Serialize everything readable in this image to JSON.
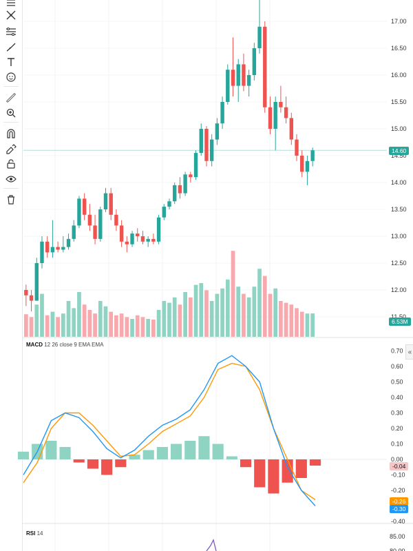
{
  "toolbar": {
    "tools": [
      "crosshair-lines-icon",
      "trend-line-icon",
      "fib-icon",
      "brush-icon",
      "text-icon",
      "emoji-icon",
      "ruler-icon",
      "zoom-in-icon",
      "magnet-icon",
      "lock-draw-icon",
      "lock-icon",
      "eye-icon",
      "trash-icon"
    ]
  },
  "price_axis": {
    "ticks": [
      "17.00",
      "16.50",
      "16.00",
      "15.50",
      "15.00",
      "14.50",
      "14.00",
      "13.50",
      "13.00",
      "12.50",
      "12.00",
      "11.50"
    ],
    "last_price": "14.60",
    "last_volume": "6.53M"
  },
  "macd": {
    "title": "MACD",
    "params": "12 26 close 9 EMA EMA",
    "ticks": [
      "0.70",
      "0.60",
      "0.50",
      "0.40",
      "0.30",
      "0.20",
      "0.10",
      "0.00",
      "-0.10",
      "-0.20",
      "-0.30",
      "-0.40"
    ],
    "histogram_value": "-0.04",
    "signal_value": "-0.26",
    "macd_value": "-0.30"
  },
  "rsi": {
    "title": "RSI",
    "params": "14",
    "ticks": [
      "85.00",
      "80.00"
    ]
  },
  "colors": {
    "up": "#26a69a",
    "down": "#ef5350",
    "up_vol": "#8fd3c3",
    "down_vol": "#f7a9ad",
    "macd_line": "#2196f3",
    "signal_line": "#ff9800",
    "rsi_line": "#7e57c2"
  },
  "chart_data": {
    "type": "candlestick",
    "ohlc": [
      [
        12.0,
        12.1,
        11.7,
        11.9
      ],
      [
        11.9,
        12.0,
        11.6,
        11.8
      ],
      [
        11.8,
        12.6,
        11.8,
        12.5
      ],
      [
        12.5,
        13.0,
        12.4,
        12.9
      ],
      [
        12.9,
        13.0,
        12.6,
        12.7
      ],
      [
        12.7,
        13.3,
        12.6,
        12.8
      ],
      [
        12.8,
        12.9,
        12.7,
        12.75
      ],
      [
        12.75,
        13.0,
        12.7,
        12.8
      ],
      [
        12.8,
        13.05,
        12.75,
        12.95
      ],
      [
        12.95,
        13.3,
        12.9,
        13.2
      ],
      [
        13.2,
        13.75,
        13.15,
        13.7
      ],
      [
        13.7,
        13.8,
        13.3,
        13.4
      ],
      [
        13.4,
        13.6,
        13.1,
        13.2
      ],
      [
        13.2,
        13.4,
        12.85,
        12.95
      ],
      [
        12.95,
        13.55,
        12.9,
        13.5
      ],
      [
        13.5,
        13.9,
        13.45,
        13.8
      ],
      [
        13.8,
        13.9,
        13.3,
        13.4
      ],
      [
        13.4,
        13.5,
        13.1,
        13.2
      ],
      [
        13.2,
        13.3,
        12.8,
        12.9
      ],
      [
        12.9,
        13.0,
        12.7,
        12.85
      ],
      [
        12.85,
        13.1,
        12.8,
        13.05
      ],
      [
        13.05,
        13.15,
        12.9,
        13.0
      ],
      [
        13.0,
        13.1,
        12.85,
        12.9
      ],
      [
        12.9,
        13.0,
        12.8,
        12.95
      ],
      [
        12.95,
        13.05,
        12.85,
        12.9
      ],
      [
        12.9,
        13.4,
        12.85,
        13.35
      ],
      [
        13.35,
        13.6,
        13.3,
        13.55
      ],
      [
        13.55,
        13.7,
        13.5,
        13.65
      ],
      [
        13.65,
        14.0,
        13.6,
        13.95
      ],
      [
        13.95,
        14.1,
        13.7,
        13.8
      ],
      [
        13.8,
        14.2,
        13.75,
        14.15
      ],
      [
        14.15,
        14.2,
        14.0,
        14.1
      ],
      [
        14.1,
        14.6,
        14.05,
        14.55
      ],
      [
        14.55,
        15.1,
        14.5,
        15.0
      ],
      [
        15.0,
        15.05,
        14.3,
        14.4
      ],
      [
        14.4,
        14.9,
        14.3,
        14.8
      ],
      [
        14.8,
        15.2,
        14.7,
        15.1
      ],
      [
        15.1,
        15.6,
        15.0,
        15.5
      ],
      [
        15.5,
        16.2,
        15.45,
        16.1
      ],
      [
        16.1,
        16.7,
        15.6,
        15.8
      ],
      [
        15.8,
        16.3,
        15.5,
        16.2
      ],
      [
        16.2,
        16.4,
        15.7,
        15.8
      ],
      [
        15.8,
        16.1,
        15.6,
        16.0
      ],
      [
        16.0,
        16.6,
        15.9,
        16.5
      ],
      [
        16.5,
        17.4,
        16.4,
        16.9
      ],
      [
        16.9,
        17.0,
        15.3,
        15.4
      ],
      [
        15.4,
        15.6,
        14.9,
        15.0
      ],
      [
        15.0,
        15.6,
        14.6,
        15.5
      ],
      [
        15.5,
        15.8,
        15.3,
        15.4
      ],
      [
        15.4,
        15.6,
        15.1,
        15.2
      ],
      [
        15.2,
        15.3,
        14.7,
        14.8
      ],
      [
        14.8,
        14.9,
        14.4,
        14.5
      ],
      [
        14.5,
        14.6,
        14.1,
        14.2
      ],
      [
        14.2,
        14.5,
        13.95,
        14.4
      ],
      [
        14.4,
        14.65,
        14.3,
        14.6
      ]
    ],
    "volume": [
      6.3,
      5.5,
      9.0,
      12.0,
      6.0,
      7.0,
      5.5,
      6.5,
      10.0,
      8.0,
      12.5,
      9.0,
      7.5,
      6.5,
      10.0,
      8.5,
      7.0,
      6.0,
      6.5,
      5.5,
      5.0,
      6.0,
      5.5,
      5.0,
      4.8,
      7.5,
      10.0,
      9.5,
      11.0,
      9.0,
      12.5,
      11.0,
      14.5,
      15.0,
      13.0,
      10.0,
      12.0,
      13.5,
      16.0,
      24.0,
      14.0,
      12.0,
      11.0,
      14.0,
      19.0,
      17.0,
      12.0,
      13.5,
      10.0,
      9.5,
      9.0,
      8.0,
      7.0,
      6.5,
      6.53
    ],
    "volume_unit": "M",
    "macd_line": [
      -0.1,
      0.05,
      0.25,
      0.3,
      0.27,
      0.18,
      0.07,
      0.01,
      0.06,
      0.15,
      0.22,
      0.26,
      0.32,
      0.45,
      0.62,
      0.67,
      0.6,
      0.5,
      0.2,
      -0.05,
      -0.2,
      -0.3
    ],
    "signal_line": [
      -0.15,
      -0.02,
      0.2,
      0.3,
      0.3,
      0.22,
      0.12,
      0.02,
      0.03,
      0.1,
      0.18,
      0.23,
      0.28,
      0.4,
      0.58,
      0.62,
      0.6,
      0.45,
      0.2,
      0.0,
      -0.2,
      -0.26
    ],
    "histogram": [
      0.05,
      0.1,
      0.12,
      0.08,
      -0.02,
      -0.06,
      -0.1,
      -0.05,
      0.03,
      0.06,
      0.08,
      0.1,
      0.12,
      0.15,
      0.1,
      0.02,
      -0.05,
      -0.18,
      -0.22,
      -0.15,
      -0.12,
      -0.04
    ]
  }
}
